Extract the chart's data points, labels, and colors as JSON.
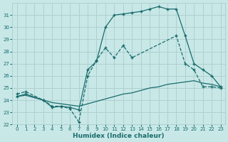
{
  "xlabel": "Humidex (Indice chaleur)",
  "bg_color": "#c8e8e8",
  "grid_color": "#b0d0d0",
  "line_color": "#1a6b6b",
  "xlim": [
    -0.5,
    23.5
  ],
  "ylim": [
    22,
    32
  ],
  "xticks": [
    0,
    1,
    2,
    3,
    4,
    5,
    6,
    7,
    8,
    9,
    10,
    11,
    12,
    13,
    14,
    15,
    16,
    17,
    18,
    19,
    20,
    21,
    22,
    23
  ],
  "yticks": [
    22,
    23,
    24,
    25,
    26,
    27,
    28,
    29,
    30,
    31
  ],
  "line1_x": [
    0,
    1,
    3,
    4,
    5,
    6,
    7,
    8,
    9,
    10,
    11,
    12,
    13,
    18,
    19,
    20,
    21,
    22,
    23
  ],
  "line1_y": [
    24.5,
    24.7,
    24.0,
    23.5,
    23.5,
    23.3,
    22.2,
    26.0,
    27.3,
    28.3,
    27.5,
    28.5,
    27.5,
    29.3,
    27.0,
    26.5,
    25.1,
    25.1,
    25.0
  ],
  "line2_x": [
    0,
    1,
    3,
    4,
    5,
    6,
    7,
    8,
    9,
    10,
    11,
    12,
    13,
    14,
    15,
    16,
    17,
    18,
    19,
    20,
    21,
    22,
    23
  ],
  "line2_y": [
    24.3,
    24.5,
    24.0,
    23.4,
    23.5,
    23.4,
    23.2,
    26.5,
    27.2,
    30.0,
    31.0,
    31.1,
    31.2,
    31.3,
    31.5,
    31.7,
    31.5,
    31.5,
    29.3,
    27.0,
    26.5,
    26.0,
    25.1
  ],
  "line3_x": [
    0,
    1,
    2,
    3,
    4,
    5,
    6,
    7,
    8,
    9,
    10,
    11,
    12,
    13,
    14,
    15,
    16,
    17,
    18,
    19,
    20,
    21,
    22,
    23
  ],
  "line3_y": [
    24.3,
    24.4,
    24.2,
    24.0,
    23.8,
    23.7,
    23.6,
    23.5,
    23.7,
    23.9,
    24.1,
    24.3,
    24.5,
    24.6,
    24.8,
    25.0,
    25.1,
    25.3,
    25.4,
    25.5,
    25.6,
    25.4,
    25.3,
    25.1
  ]
}
